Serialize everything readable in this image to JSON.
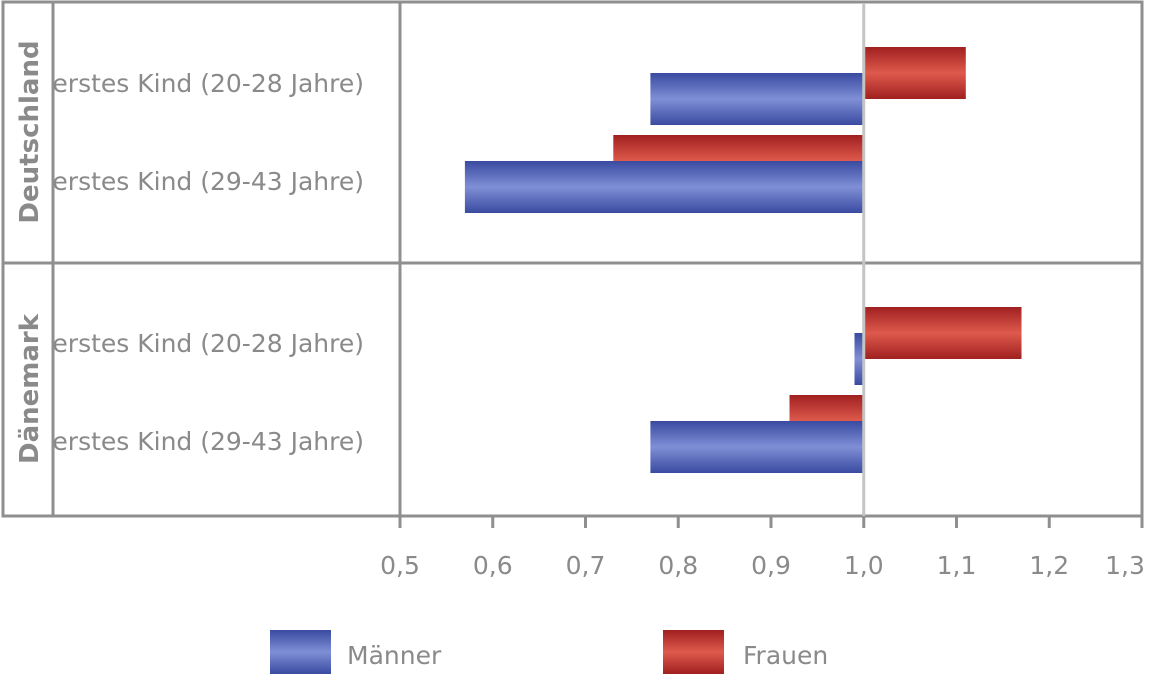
{
  "chart_data": {
    "type": "bar",
    "orientation": "horizontal",
    "baseline": 1.0,
    "groups": [
      {
        "name": "Deutschland",
        "categories": [
          "erstes Kind (20-28 Jahre)",
          "erstes Kind (29-43 Jahre)"
        ]
      },
      {
        "name": "Dänemark",
        "categories": [
          "erstes Kind (20-28 Jahre)",
          "erstes Kind (29-43 Jahre)"
        ]
      }
    ],
    "series": [
      {
        "name": "Männer",
        "color": "#5565b8",
        "values": [
          0.77,
          0.57,
          0.99,
          0.77
        ]
      },
      {
        "name": "Frauen",
        "color": "#c0332b",
        "values": [
          1.11,
          0.73,
          1.17,
          0.92
        ]
      }
    ],
    "xlim": [
      0.5,
      1.3
    ],
    "xticks": [
      "0,5",
      "0,6",
      "0,7",
      "0,8",
      "0,9",
      "1,0",
      "1,1",
      "1,2",
      "1,3"
    ],
    "legend": {
      "position": "bottom",
      "items": [
        "Männer",
        "Frauen"
      ]
    },
    "grid": false
  }
}
